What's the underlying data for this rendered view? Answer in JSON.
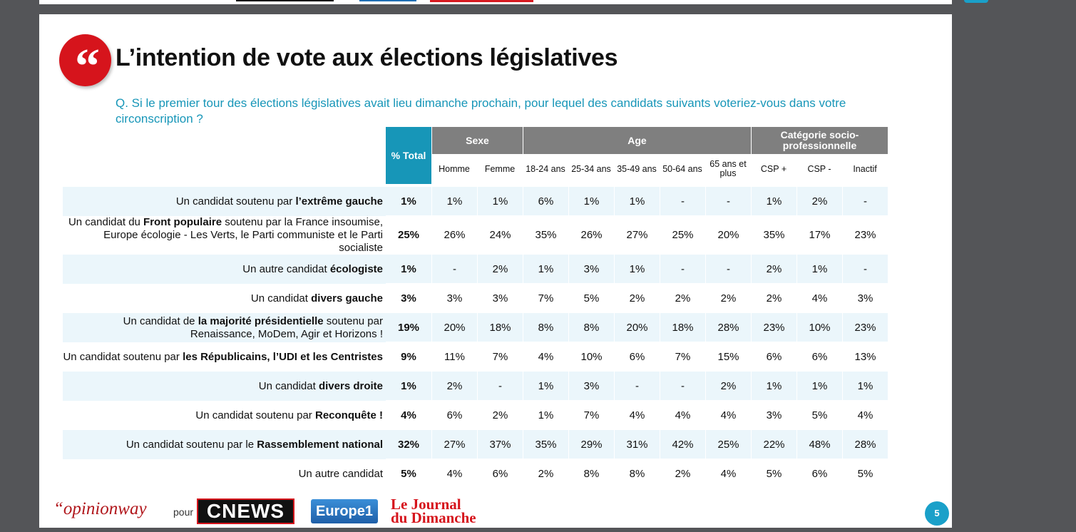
{
  "title": "L’intention de vote aux élections législatives",
  "question": "Q. Si le premier tour des élections législatives avait lieu dimanche prochain, pour lequel des candidats suivants voteriez-vous dans votre circonscription ?",
  "table": {
    "total_header": "% Total",
    "groups": [
      {
        "label": "Sexe",
        "subs": [
          "Homme",
          "Femme"
        ]
      },
      {
        "label": "Age",
        "subs": [
          "18-24 ans",
          "25-34 ans",
          "35-49 ans",
          "50-64 ans",
          "65 ans et plus"
        ]
      },
      {
        "label": "Catégorie socio-professionnelle",
        "subs": [
          "CSP +",
          "CSP -",
          "Inactif"
        ]
      }
    ],
    "rows": [
      {
        "pre": "Un candidat soutenu par ",
        "bold": "l’extrême gauche",
        "post": "",
        "total": "1%",
        "values": [
          "1%",
          "1%",
          "6%",
          "1%",
          "1%",
          "-",
          "-",
          "1%",
          "2%",
          "-"
        ]
      },
      {
        "pre": "Un candidat du ",
        "bold": "Front populaire",
        "post": " soutenu par la France insoumise, Europe écologie - Les Verts, le Parti communiste et le Parti socialiste",
        "total": "25%",
        "values": [
          "26%",
          "24%",
          "35%",
          "26%",
          "27%",
          "25%",
          "20%",
          "35%",
          "17%",
          "23%"
        ]
      },
      {
        "pre": "Un autre candidat ",
        "bold": "écologiste",
        "post": "",
        "total": "1%",
        "values": [
          "-",
          "2%",
          "1%",
          "3%",
          "1%",
          "-",
          "-",
          "2%",
          "1%",
          "-"
        ]
      },
      {
        "pre": "Un candidat ",
        "bold": "divers gauche",
        "post": "",
        "total": "3%",
        "values": [
          "3%",
          "3%",
          "7%",
          "5%",
          "2%",
          "2%",
          "2%",
          "2%",
          "4%",
          "3%"
        ]
      },
      {
        "pre": "Un candidat de ",
        "bold": "la majorité présidentielle",
        "post": " soutenu par Renaissance, MoDem, Agir et Horizons !",
        "total": "19%",
        "values": [
          "20%",
          "18%",
          "8%",
          "8%",
          "20%",
          "18%",
          "28%",
          "23%",
          "10%",
          "23%"
        ]
      },
      {
        "pre": "Un candidat soutenu par ",
        "bold": "les Républicains, l’UDI et les Centristes",
        "post": "",
        "total": "9%",
        "values": [
          "11%",
          "7%",
          "4%",
          "10%",
          "6%",
          "7%",
          "15%",
          "6%",
          "6%",
          "13%"
        ]
      },
      {
        "pre": "Un candidat ",
        "bold": "divers droite",
        "post": "",
        "total": "1%",
        "values": [
          "2%",
          "-",
          "1%",
          "3%",
          "-",
          "-",
          "2%",
          "1%",
          "1%",
          "1%"
        ]
      },
      {
        "pre": "Un candidat soutenu par ",
        "bold": "Reconquête !",
        "post": "",
        "total": "4%",
        "values": [
          "6%",
          "2%",
          "1%",
          "7%",
          "4%",
          "4%",
          "4%",
          "3%",
          "5%",
          "4%"
        ]
      },
      {
        "pre": "Un candidat soutenu par le ",
        "bold": "Rassemblement national",
        "post": "",
        "total": "32%",
        "values": [
          "27%",
          "37%",
          "35%",
          "29%",
          "31%",
          "42%",
          "25%",
          "22%",
          "48%",
          "28%"
        ]
      },
      {
        "pre": "Un autre candidat",
        "bold": "",
        "post": "",
        "total": "5%",
        "values": [
          "4%",
          "6%",
          "2%",
          "8%",
          "8%",
          "2%",
          "4%",
          "5%",
          "6%",
          "5%"
        ]
      }
    ]
  },
  "footer": {
    "opinionway": "“opinionway",
    "pour": "pour",
    "cnews": "CNEWS",
    "europe1": "Europe1",
    "jdd_line1": "Le Journal",
    "jdd_line2": "du Dimanche",
    "page_number": "5"
  },
  "colors": {
    "accent_red": "#d6141c",
    "accent_blue": "#1796b8",
    "header_gray": "#7f7f7f",
    "row_alt": "#ebf6fb"
  }
}
